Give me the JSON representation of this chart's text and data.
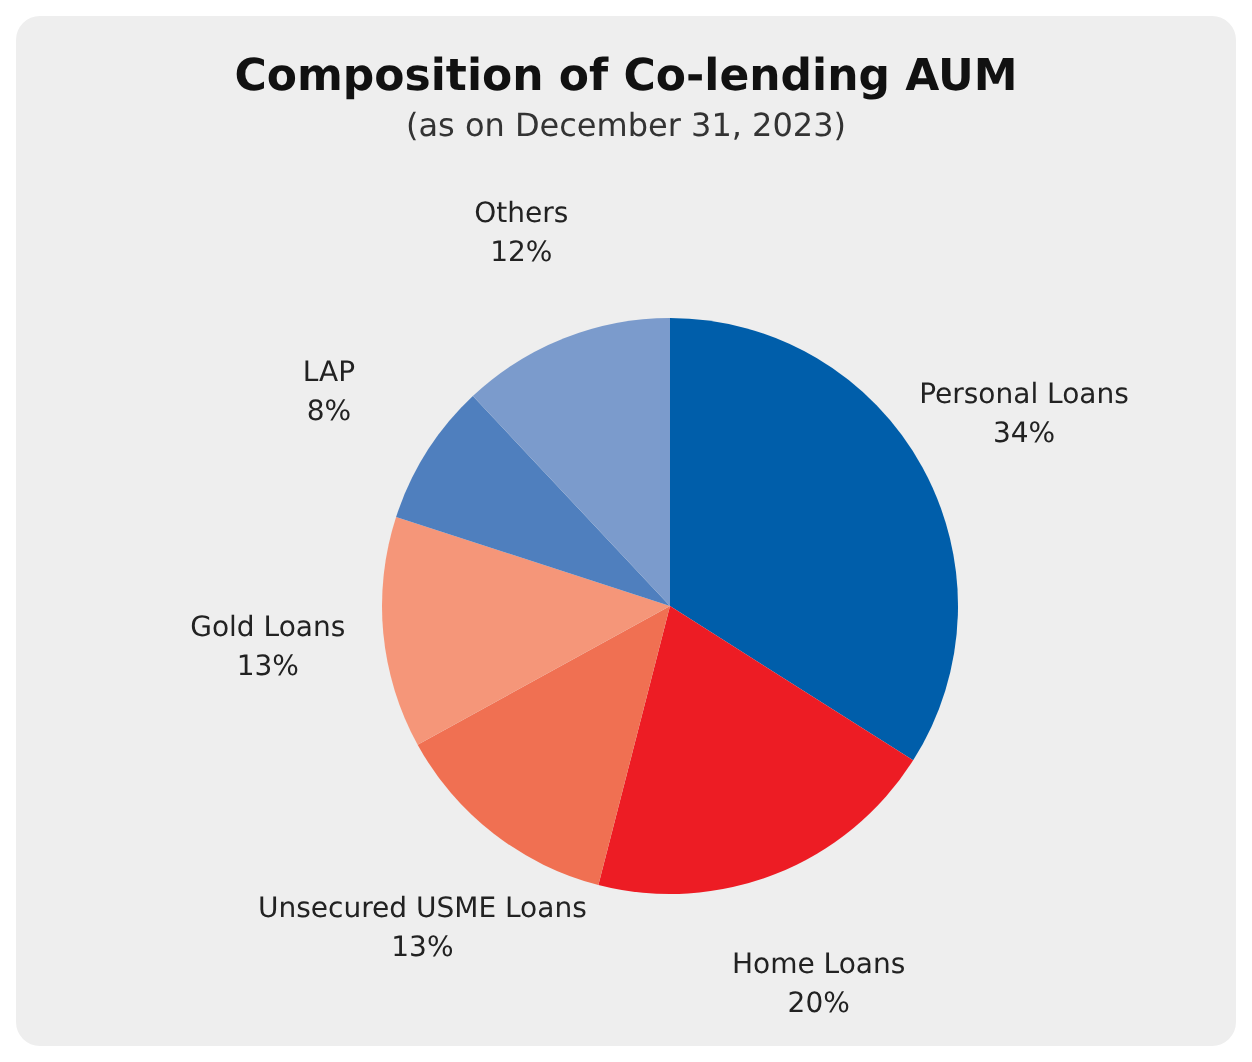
{
  "chart_data": {
    "type": "pie",
    "title": "Composition of Co-lending AUM",
    "subtitle": "(as on December 31, 2023)",
    "categories": [
      "Personal Loans",
      "Home Loans",
      "Unsecured USME Loans",
      "Gold Loans",
      "LAP",
      "Others"
    ],
    "values": [
      34,
      20,
      13,
      13,
      8,
      12
    ],
    "value_labels": [
      "34%",
      "20%",
      "13%",
      "13%",
      "8%",
      "12%"
    ],
    "colors": [
      "#005eaa",
      "#ed1c24",
      "#f07052",
      "#f59679",
      "#4f7fbe",
      "#7b9bcc"
    ],
    "legend": false
  }
}
